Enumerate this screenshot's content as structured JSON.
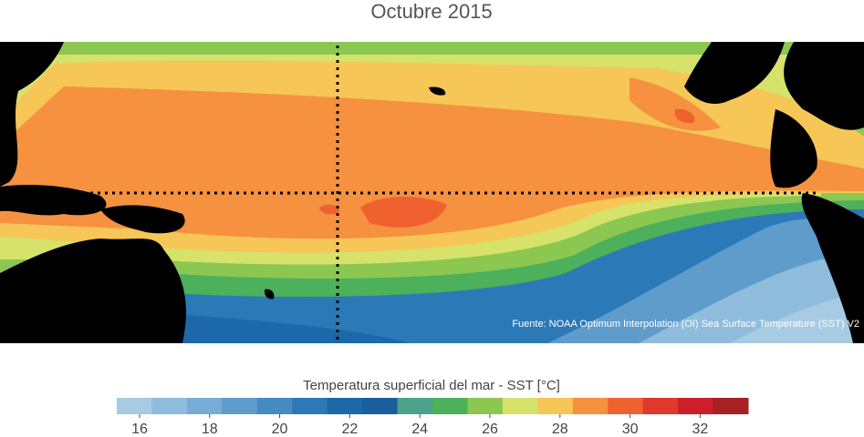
{
  "title": "Octubre 2015",
  "source": "Fuente: NOAA Optimum Interpolation (OI) Sea Surface Temperature (SST) V2",
  "colorbar": {
    "label": "Temperatura superficial del mar - SST  [°C]",
    "range": [
      15.35,
      33.37
    ],
    "ticks": [
      16,
      18,
      20,
      22,
      24,
      26,
      28,
      30,
      32
    ],
    "colors": [
      "#a6cbe3",
      "#8fbcdc",
      "#78acd4",
      "#5f9ccb",
      "#468bc2",
      "#2c79b7",
      "#1d68a8",
      "#1a5f9c",
      "#4aa38a",
      "#4db05a",
      "#8cc751",
      "#d6e26a",
      "#f6c657",
      "#f5913f",
      "#ef6230",
      "#e0382a",
      "#cc1f2a",
      "#a81f24"
    ]
  }
}
